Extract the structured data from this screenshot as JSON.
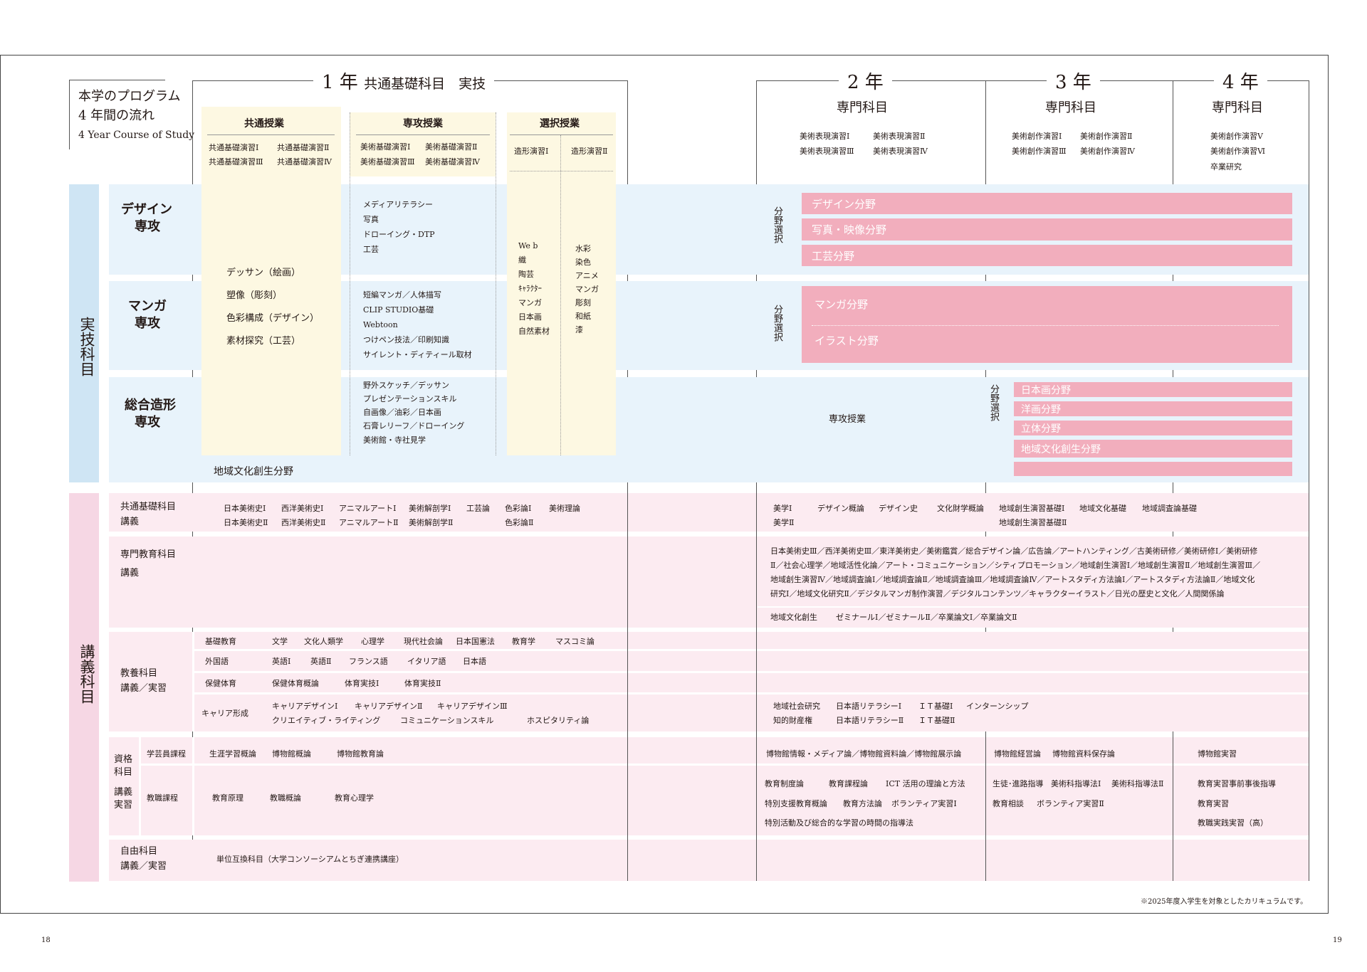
{
  "title": {
    "line1": "本学のプログラム",
    "line2": "4 年間の流れ",
    "line3": "4 Year Course of Study"
  },
  "years": {
    "y1": {
      "label": "1 年",
      "sub": "共通基礎科目　実技"
    },
    "y2": {
      "label": "2 年",
      "sub": "専門科目"
    },
    "y3": {
      "label": "3 年",
      "sub": "専門科目"
    },
    "y4": {
      "label": "4 年",
      "sub": "専門科目"
    }
  },
  "y1_headers": {
    "common": "共通授業",
    "major": "専攻授業",
    "elective": "選択授業"
  },
  "y1_common_subjects": [
    "共通基礎演習Ⅰ",
    "共通基礎演習Ⅱ",
    "共通基礎演習Ⅲ",
    "共通基礎演習Ⅳ"
  ],
  "y1_major_subjects": [
    "美術基礎演習Ⅰ",
    "美術基礎演習Ⅱ",
    "美術基礎演習Ⅲ",
    "美術基礎演習Ⅳ"
  ],
  "y1_elective_subjects": [
    "造形演習Ⅰ",
    "造形演習Ⅱ"
  ],
  "y2_subjects": [
    "美術表現演習Ⅰ",
    "美術表現演習Ⅱ",
    "美術表現演習Ⅲ",
    "美術表現演習Ⅳ"
  ],
  "y3_subjects": [
    "美術創作演習Ⅰ",
    "美術創作演習Ⅱ",
    "美術創作演習Ⅲ",
    "美術創作演習Ⅳ"
  ],
  "y4_subjects": [
    "美術創作演習Ⅴ",
    "美術創作演習Ⅵ",
    "卒業研究"
  ],
  "side": {
    "practical": "実技科目",
    "lecture": "講義科目"
  },
  "majors": {
    "design": {
      "l1": "デザイン",
      "l2": "専攻"
    },
    "manga": {
      "l1": "マンガ",
      "l2": "専攻"
    },
    "sogo": {
      "l1": "総合造形",
      "l2": "専攻"
    }
  },
  "common_basic_list": [
    "デッサン（絵画）",
    "塑像（彫刻）",
    "色彩構成（デザイン）",
    "素材探究（工芸）"
  ],
  "design_major_list": [
    "メディアリテラシー",
    "写真",
    "ドローイング・DTP",
    "工芸"
  ],
  "manga_major_list": [
    "短編マンガ／人体描写",
    "CLIP STUDIO基礎",
    "Webtoon",
    "つけペン技法／印刷知識",
    "サイレント・ディティール取材"
  ],
  "sogo_major_list": [
    "野外スケッチ／デッサン",
    "プレゼンテーションスキル",
    "自画像／油彩／日本画",
    "石膏レリーフ／ドローイング",
    "美術館・寺社見学"
  ],
  "elective_col1": [
    "We b",
    "織",
    "陶芸",
    "ｷｬﾗｸﾀｰ",
    "マンガ",
    "日本画",
    "自然素材"
  ],
  "elective_col2": [
    "水彩",
    "染色",
    "アニメ",
    "マンガ",
    "彫刻",
    "和紙",
    "漆"
  ],
  "regional_field": "地域文化創生分野",
  "field_select": "分野選択",
  "design_fields": [
    "デザイン分野",
    "写真・映像分野",
    "工芸分野"
  ],
  "manga_fields": [
    "マンガ分野",
    "イラスト分野"
  ],
  "sogo_y2": "専攻授業",
  "sogo_fields": [
    "日本画分野",
    "洋画分野",
    "立体分野",
    "地域文化創生分野"
  ],
  "lecture": {
    "kyotsu": {
      "l1": "共通基礎科目",
      "l2": "講義"
    },
    "kyotsu_y1_r1": [
      "日本美術史Ⅰ",
      "西洋美術史Ⅰ",
      "アニマルアートⅠ",
      "美術解剖学Ⅰ",
      "工芸論",
      "色彩論Ⅰ",
      "美術理論"
    ],
    "kyotsu_y1_r2": [
      "日本美術史Ⅱ",
      "西洋美術史Ⅱ",
      "アニマルアートⅡ",
      "美術解剖学Ⅱ",
      "色彩論Ⅱ"
    ],
    "kyotsu_y2_r1": [
      "美学Ⅰ",
      "デザイン概論",
      "デザイン史",
      "文化財学概論",
      "地域創生演習基礎Ⅰ",
      "地域文化基礎",
      "地域調査論基礎"
    ],
    "kyotsu_y2_r2": [
      "美学Ⅱ",
      "地域創生演習基礎Ⅱ"
    ],
    "senmon": {
      "l1": "専門教育科目",
      "l2": "講義"
    },
    "senmon_text": [
      "日本美術史Ⅲ／西洋美術史Ⅲ／東洋美術史／美術鑑賞／総合デザイン論／広告論／アートハンティング／古美術研修／美術研修Ⅰ／美術研修",
      "Ⅱ／社会心理学／地域活性化論／アート・コミュニケーション／シティプロモーション／地域創生演習Ⅰ／地域創生演習Ⅱ／地域創生演習Ⅲ／",
      "地域創生演習Ⅳ／地域調査論Ⅰ／地域調査論Ⅱ／地域調査論Ⅲ／地域調査論Ⅳ／アートスタディ方法論Ⅰ／アートスタディ方法論Ⅱ／地域文化",
      "研究Ⅰ／地域文化研究Ⅱ／デジタルマンガ制作演習／デジタルコンテンツ／キャラクターイラスト／日光の歴史と文化／人間関係論"
    ],
    "senmon_regional_label": "地域文化創生",
    "senmon_regional_text": "ゼミナールⅠ／ゼミナールⅡ／卒業論文Ⅰ／卒業論文Ⅱ",
    "kyoyo": {
      "l1": "教養科目",
      "l2": "講義／実習"
    },
    "kyoyo_rows": [
      {
        "label": "基礎教育",
        "items": [
          "文学",
          "文化人類学",
          "心理学",
          "現代社会論",
          "日本国憲法",
          "教育学",
          "マスコミ論"
        ]
      },
      {
        "label": "外国語",
        "items": [
          "英語Ⅰ",
          "英語Ⅱ",
          "フランス語",
          "イタリア語",
          "日本語"
        ]
      },
      {
        "label": "保健体育",
        "items": [
          "保健体育概論",
          "体育実技Ⅰ",
          "体育実技Ⅱ"
        ]
      }
    ],
    "career_label": "キャリア形成",
    "career_r1": [
      "キャリアデザインⅠ",
      "キャリアデザインⅡ",
      "キャリアデザインⅢ"
    ],
    "career_r2": [
      "クリエイティブ・ライティング",
      "コミュニケーションスキル",
      "ホスピタリティ論"
    ],
    "career_y2_r1": [
      "地域社会研究",
      "日本語リテラシーⅠ",
      "ＩＴ基礎Ⅰ",
      "インターンシップ"
    ],
    "career_y2_r2": [
      "知的財産権",
      "日本語リテラシーⅡ",
      "ＩＴ基礎Ⅱ"
    ],
    "shikaku": {
      "l1": "資格",
      "l2": "科目",
      "l3": "講義",
      "l4": "実習"
    },
    "gakugei_label": "学芸員課程",
    "gakugei_y1": [
      "生涯学習概論",
      "博物館概論",
      "博物館教育論"
    ],
    "gakugei_y2": "博物館情報・メディア論／博物館資料論／博物館展示論",
    "gakugei_y3": [
      "博物館経営論",
      "博物館資料保存論"
    ],
    "gakugei_y4": "博物館実習",
    "kyoshoku_label": "教職課程",
    "kyoshoku_y1": [
      "教育原理",
      "教職概論",
      "教育心理学"
    ],
    "kyoshoku_y2": [
      "教育制度論",
      "教育課程論",
      "ICT 活用の理論と方法",
      "特別支援教育概論",
      "教育方法論",
      "ボランティア実習Ⅰ",
      "特別活動及び総合的な学習の時間の指導法"
    ],
    "kyoshoku_y3": [
      "生徒･進路指導",
      "美術科指導法Ⅰ",
      "美術科指導法Ⅱ",
      "教育相談",
      "ボランティア実習Ⅱ"
    ],
    "kyoshoku_y4": [
      "教育実習事前事後指導",
      "教育実習",
      "教職実践実習（高）"
    ],
    "jiyu": {
      "l1": "自由科目",
      "l2": "講義／実習"
    },
    "jiyu_text": "単位互換科目（大学コンソーシアムとちぎ連携講座）"
  },
  "footnote": "※2025年度入学生を対象としたカリキュラムです。",
  "page_left": "18",
  "page_right": "19"
}
